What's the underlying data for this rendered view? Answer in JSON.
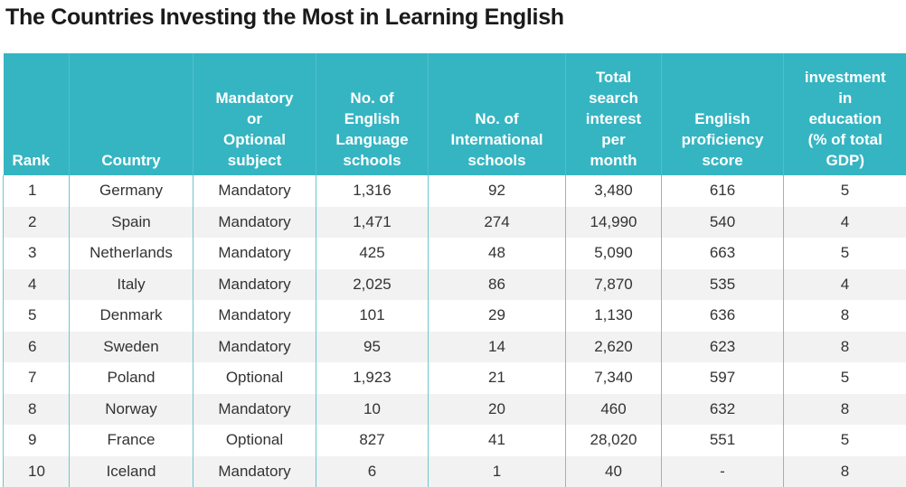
{
  "chart_data": {
    "type": "table",
    "title": "The Countries Investing the Most in Learning English",
    "columns": [
      [
        "Rank"
      ],
      [
        "Country"
      ],
      [
        "Mandatory",
        "or",
        "Optional",
        "subject"
      ],
      [
        "No. of",
        "English",
        "Language",
        "schools"
      ],
      [
        "No. of",
        "International",
        "schools"
      ],
      [
        "Total",
        "search",
        "interest",
        "per",
        "month"
      ],
      [
        "English",
        "proficiency",
        "score"
      ],
      [
        "investment",
        "in",
        "education",
        "(% of total",
        "GDP)"
      ]
    ],
    "rows": [
      [
        "1",
        "Germany",
        "Mandatory",
        "1,316",
        "92",
        "3,480",
        "616",
        "5"
      ],
      [
        "2",
        "Spain",
        "Mandatory",
        "1,471",
        "274",
        "14,990",
        "540",
        "4"
      ],
      [
        "3",
        "Netherlands",
        "Mandatory",
        "425",
        "48",
        "5,090",
        "663",
        "5"
      ],
      [
        "4",
        "Italy",
        "Mandatory",
        "2,025",
        "86",
        "7,870",
        "535",
        "4"
      ],
      [
        "5",
        "Denmark",
        "Mandatory",
        "101",
        "29",
        "1,130",
        "636",
        "8"
      ],
      [
        "6",
        "Sweden",
        "Mandatory",
        "95",
        "14",
        "2,620",
        "623",
        "8"
      ],
      [
        "7",
        "Poland",
        "Optional",
        "1,923",
        "21",
        "7,340",
        "597",
        "5"
      ],
      [
        "8",
        "Norway",
        "Mandatory",
        "10",
        "20",
        "460",
        "632",
        "8"
      ],
      [
        "9",
        "France",
        "Optional",
        "827",
        "41",
        "28,020",
        "551",
        "5"
      ],
      [
        "10",
        "Iceland",
        "Mandatory",
        "6",
        "1",
        "40",
        "-",
        "8"
      ]
    ],
    "colors": {
      "header_bg": "#35b5c2",
      "header_text": "#ffffff",
      "row_alt": "#f2f2f2",
      "grid": "#6cc6cf"
    }
  }
}
